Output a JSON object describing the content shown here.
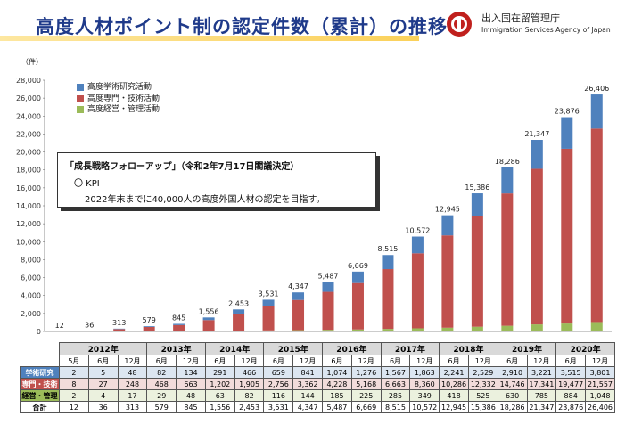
{
  "header": {
    "title": "高度人材ポイント制の認定件数（累計）の推移",
    "agency_jp": "出入国在留管理庁",
    "agency_en": "Immigration Services Agency of Japan"
  },
  "callout": {
    "title": "「成長戦略フォローアップ」（令和2年7月17日閣議決定）",
    "kpi": "〇 KPI",
    "line": "2022年末までに40,000人の高度外国人材の認定を目指す。"
  },
  "chart_data": {
    "type": "bar",
    "stacked": true,
    "unit_label": "（件）",
    "categories": [
      "2012-5",
      "2012-6",
      "2012-12",
      "2013-6",
      "2013-12",
      "2014-6",
      "2014-12",
      "2015-6",
      "2015-12",
      "2016-6",
      "2016-12",
      "2017-6",
      "2017-12",
      "2018-6",
      "2018-12",
      "2019-6",
      "2019-12",
      "2020-6",
      "2020-12"
    ],
    "series": [
      {
        "name": "高度学術研究活動",
        "color": "#4f81bd",
        "values": [
          2,
          5,
          48,
          82,
          134,
          291,
          466,
          659,
          841,
          1074,
          1276,
          1567,
          1863,
          2241,
          2529,
          2910,
          3221,
          3515,
          3801
        ]
      },
      {
        "name": "高度専門・技術活動",
        "color": "#c0504d",
        "values": [
          8,
          27,
          248,
          468,
          663,
          1202,
          1905,
          2756,
          3362,
          4228,
          5168,
          6663,
          8360,
          10286,
          12332,
          14746,
          17341,
          19477,
          21557
        ]
      },
      {
        "name": "高度経営・管理活動",
        "color": "#9bbb59",
        "values": [
          2,
          4,
          17,
          29,
          48,
          63,
          82,
          116,
          144,
          185,
          225,
          285,
          349,
          418,
          525,
          630,
          785,
          884,
          1048
        ]
      }
    ],
    "totals": [
      12,
      36,
      313,
      579,
      845,
      1556,
      2453,
      3531,
      4347,
      5487,
      6669,
      8515,
      10572,
      12945,
      15386,
      18286,
      21347,
      23876,
      26406
    ],
    "total_labels": [
      "12",
      "36",
      "313",
      "579",
      "845",
      "1,556",
      "2,453",
      "3,531",
      "4,347",
      "5,487",
      "6,669",
      "8,515",
      "10,572",
      "12,945",
      "15,386",
      "18,286",
      "21,347",
      "23,876",
      "26,406"
    ],
    "ylim": [
      0,
      28000
    ],
    "yticks": [
      "0",
      "2,000",
      "4,000",
      "6,000",
      "8,000",
      "10,000",
      "12,000",
      "14,000",
      "16,000",
      "18,000",
      "20,000",
      "22,000",
      "24,000",
      "26,000",
      "28,000"
    ],
    "legend_position": "top-left"
  },
  "table": {
    "years": [
      {
        "label": "2012年",
        "span": 3
      },
      {
        "label": "2013年",
        "span": 2
      },
      {
        "label": "2014年",
        "span": 2
      },
      {
        "label": "2015年",
        "span": 2
      },
      {
        "label": "2016年",
        "span": 2
      },
      {
        "label": "2017年",
        "span": 2
      },
      {
        "label": "2018年",
        "span": 2
      },
      {
        "label": "2019年",
        "span": 2
      },
      {
        "label": "2020年",
        "span": 2
      }
    ],
    "months": [
      "5月",
      "6月",
      "12月",
      "6月",
      "12月",
      "6月",
      "12月",
      "6月",
      "12月",
      "6月",
      "12月",
      "6月",
      "12月",
      "6月",
      "12月",
      "6月",
      "12月",
      "6月",
      "12月"
    ],
    "rows": [
      {
        "label": "学術研究",
        "cls": "r-blue",
        "cells": [
          "2",
          "5",
          "48",
          "82",
          "134",
          "291",
          "466",
          "659",
          "841",
          "1,074",
          "1,276",
          "1,567",
          "1,863",
          "2,241",
          "2,529",
          "2,910",
          "3,221",
          "3,515",
          "3,801"
        ]
      },
      {
        "label": "専門・技術",
        "cls": "r-red",
        "cells": [
          "8",
          "27",
          "248",
          "468",
          "663",
          "1,202",
          "1,905",
          "2,756",
          "3,362",
          "4,228",
          "5,168",
          "6,663",
          "8,360",
          "10,286",
          "12,332",
          "14,746",
          "17,341",
          "19,477",
          "21,557"
        ]
      },
      {
        "label": "経営・管理",
        "cls": "r-green",
        "cells": [
          "2",
          "4",
          "17",
          "29",
          "48",
          "63",
          "82",
          "116",
          "144",
          "185",
          "225",
          "285",
          "349",
          "418",
          "525",
          "630",
          "785",
          "884",
          "1,048"
        ]
      },
      {
        "label": "合計",
        "cls": "r-tot",
        "cells": [
          "12",
          "36",
          "313",
          "579",
          "845",
          "1,556",
          "2,453",
          "3,531",
          "4,347",
          "5,487",
          "6,669",
          "8,515",
          "10,572",
          "12,945",
          "15,386",
          "18,286",
          "21,347",
          "23,876",
          "26,406"
        ]
      }
    ]
  }
}
